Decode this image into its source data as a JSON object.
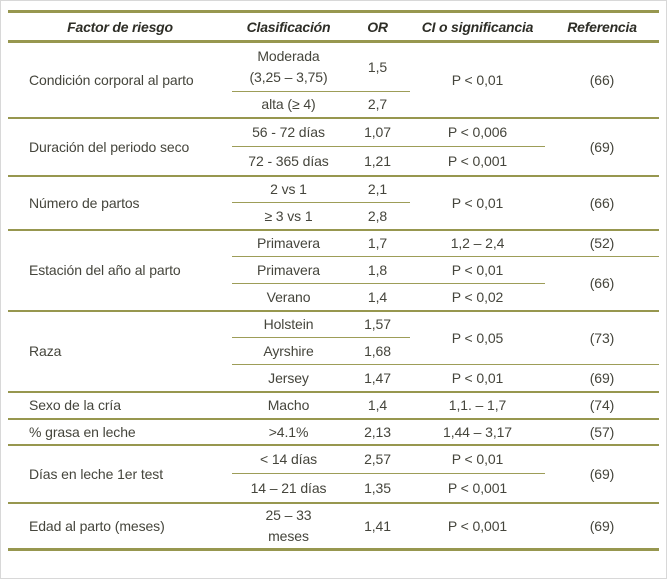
{
  "colors": {
    "rule_olive": "#97974f",
    "header_text": "#2e2e27",
    "body_text": "#45453c",
    "background": "#ffffff"
  },
  "table": {
    "headers": [
      "Factor de riesgo",
      "Clasificación",
      "OR",
      "CI o significancia",
      "Referencia"
    ],
    "groups": [
      {
        "factor": "Condición corporal al parto",
        "ci": "P < 0,01",
        "ref": "(66)",
        "subrows": [
          {
            "clasificacion": "Moderada\n(3,25 – 3,75)",
            "or": "1,5"
          },
          {
            "clasificacion": "alta (≥ 4)",
            "or": "2,7"
          }
        ]
      },
      {
        "factor": "Duración del periodo seco",
        "ref": "(69)",
        "subrows": [
          {
            "clasificacion": "56 - 72 días",
            "or": "1,07",
            "ci": "P < 0,006"
          },
          {
            "clasificacion": "72 - 365 días",
            "or": "1,21",
            "ci": "P < 0,001"
          }
        ]
      },
      {
        "factor": "Número de partos",
        "ci": "P < 0,01",
        "ref": "(66)",
        "subrows": [
          {
            "clasificacion": "2 vs 1",
            "or": "2,1"
          },
          {
            "clasificacion": "≥ 3 vs 1",
            "or": "2,8"
          }
        ]
      },
      {
        "factor": "Estación del año al parto",
        "ref_span23": "(66)",
        "subrows": [
          {
            "clasificacion": "Primavera",
            "or": "1,7",
            "ci": "1,2 – 2,4",
            "ref": "(52)"
          },
          {
            "clasificacion": "Primavera",
            "or": "1,8",
            "ci": "P < 0,01"
          },
          {
            "clasificacion": "Verano",
            "or": "1,4",
            "ci": "P < 0,02"
          }
        ]
      },
      {
        "factor": "Raza",
        "ci_span12": "P < 0,05",
        "ref_span12": "(73)",
        "subrows": [
          {
            "clasificacion": "Holstein",
            "or": "1,57"
          },
          {
            "clasificacion": "Ayrshire",
            "or": "1,68"
          },
          {
            "clasificacion": "Jersey",
            "or": "1,47",
            "ci": "P < 0,01",
            "ref": "(69)"
          }
        ]
      },
      {
        "factor": "Sexo de la cría",
        "subrows": [
          {
            "clasificacion": "Macho",
            "or": "1,4",
            "ci": "1,1. – 1,7",
            "ref": "(74)"
          }
        ]
      },
      {
        "factor": "% grasa en leche",
        "subrows": [
          {
            "clasificacion": ">4.1%",
            "or": "2,13",
            "ci": "1,44 – 3,17",
            "ref": "(57)"
          }
        ]
      },
      {
        "factor": "Días en leche 1er test",
        "ref": "(69)",
        "subrows": [
          {
            "clasificacion": "< 14 días",
            "or": "2,57",
            "ci": "P < 0,01"
          },
          {
            "clasificacion": "14 – 21 días",
            "or": "1,35",
            "ci": "P < 0,001"
          }
        ]
      },
      {
        "factor": "Edad al parto (meses)",
        "subrows": [
          {
            "clasificacion": "25 – 33\nmeses",
            "or": "1,41",
            "ci": "P < 0,001",
            "ref": "(69)"
          }
        ]
      }
    ]
  }
}
